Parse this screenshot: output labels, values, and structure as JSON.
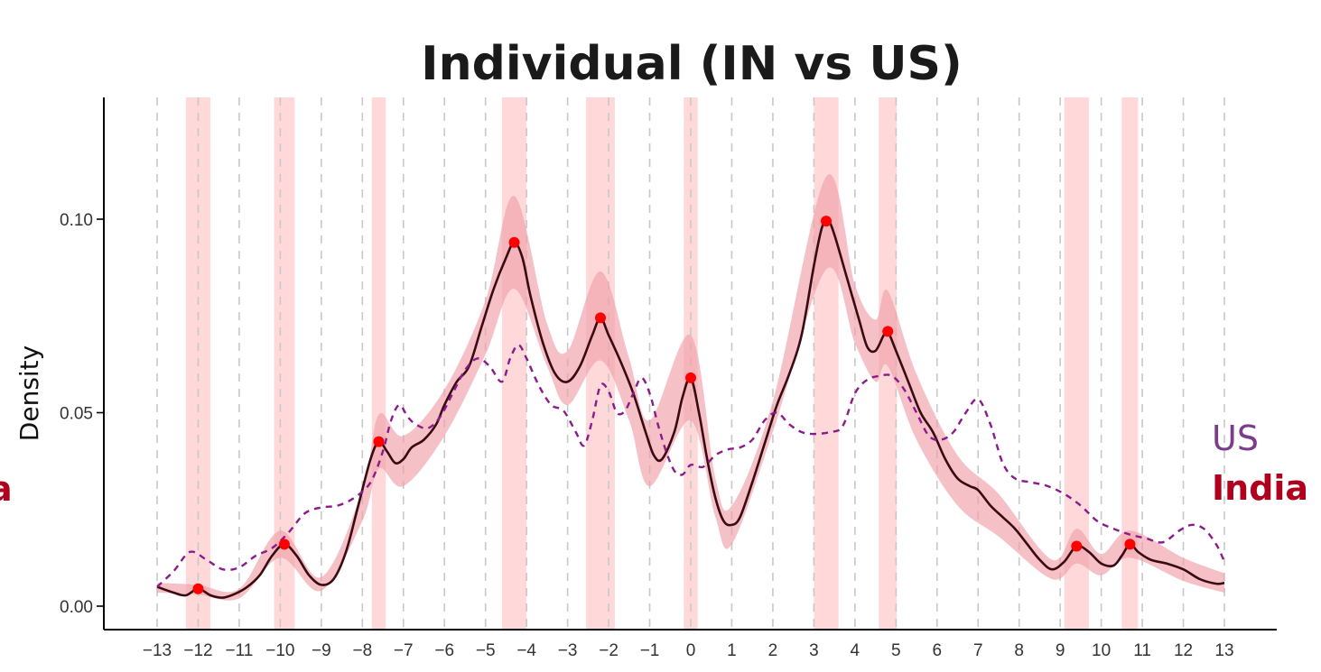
{
  "chart_data": {
    "type": "line",
    "title": "Individual (IN vs US)",
    "xlabel": "",
    "ylabel": "Density",
    "xlim": [
      -13,
      13
    ],
    "ylim": [
      0,
      0.12
    ],
    "x_ticks": [
      -13,
      -12,
      -11,
      -10,
      -9,
      -8,
      -7,
      -6,
      -5,
      -4,
      -3,
      -2,
      -1,
      0,
      1,
      2,
      3,
      4,
      5,
      6,
      7,
      8,
      9,
      10,
      11,
      12,
      13
    ],
    "y_ticks": [
      0.0,
      0.05,
      0.1
    ],
    "y_tick_labels": [
      "0.00",
      "0.05",
      "0.10"
    ],
    "grid": "vertical dashed at integer x",
    "legend": [
      {
        "label": "US",
        "color": "#8b1a8b",
        "style": "dashed"
      },
      {
        "label": "India",
        "color": "#b0001e",
        "style": "solid"
      }
    ],
    "legend_cut_label": "a",
    "series": [
      {
        "name": "India",
        "color": "#3a0a12",
        "style": "solid",
        "points": [
          [
            -13,
            0.005
          ],
          [
            -12.6,
            0.0035
          ],
          [
            -12.3,
            0.0028
          ],
          [
            -12,
            0.0045
          ],
          [
            -11.7,
            0.0028
          ],
          [
            -11.4,
            0.0022
          ],
          [
            -11.1,
            0.0032
          ],
          [
            -10.8,
            0.005
          ],
          [
            -10.5,
            0.008
          ],
          [
            -10.2,
            0.013
          ],
          [
            -9.9,
            0.016
          ],
          [
            -9.6,
            0.013
          ],
          [
            -9.3,
            0.008
          ],
          [
            -9,
            0.0055
          ],
          [
            -8.7,
            0.007
          ],
          [
            -8.4,
            0.014
          ],
          [
            -8.1,
            0.026
          ],
          [
            -7.8,
            0.038
          ],
          [
            -7.6,
            0.0425
          ],
          [
            -7.4,
            0.04
          ],
          [
            -7.2,
            0.037
          ],
          [
            -7,
            0.038
          ],
          [
            -6.8,
            0.041
          ],
          [
            -6.5,
            0.043
          ],
          [
            -6.2,
            0.047
          ],
          [
            -6,
            0.052
          ],
          [
            -5.7,
            0.058
          ],
          [
            -5.4,
            0.062
          ],
          [
            -5.1,
            0.072
          ],
          [
            -4.8,
            0.082
          ],
          [
            -4.5,
            0.09
          ],
          [
            -4.3,
            0.094
          ],
          [
            -4.1,
            0.09
          ],
          [
            -3.9,
            0.08
          ],
          [
            -3.6,
            0.068
          ],
          [
            -3.3,
            0.06
          ],
          [
            -3,
            0.058
          ],
          [
            -2.7,
            0.062
          ],
          [
            -2.4,
            0.07
          ],
          [
            -2.2,
            0.0745
          ],
          [
            -2,
            0.07
          ],
          [
            -1.7,
            0.063
          ],
          [
            -1.4,
            0.055
          ],
          [
            -1.1,
            0.045
          ],
          [
            -0.9,
            0.039
          ],
          [
            -0.7,
            0.038
          ],
          [
            -0.4,
            0.045
          ],
          [
            -0.2,
            0.054
          ],
          [
            0,
            0.059
          ],
          [
            0.2,
            0.05
          ],
          [
            0.4,
            0.038
          ],
          [
            0.6,
            0.028
          ],
          [
            0.8,
            0.022
          ],
          [
            1,
            0.021
          ],
          [
            1.2,
            0.023
          ],
          [
            1.5,
            0.032
          ],
          [
            1.8,
            0.042
          ],
          [
            2.1,
            0.052
          ],
          [
            2.4,
            0.06
          ],
          [
            2.7,
            0.07
          ],
          [
            3,
            0.088
          ],
          [
            3.2,
            0.098
          ],
          [
            3.35,
            0.0995
          ],
          [
            3.5,
            0.096
          ],
          [
            3.8,
            0.085
          ],
          [
            4.1,
            0.074
          ],
          [
            4.3,
            0.067
          ],
          [
            4.5,
            0.066
          ],
          [
            4.7,
            0.07
          ],
          [
            4.8,
            0.071
          ],
          [
            5,
            0.066
          ],
          [
            5.3,
            0.058
          ],
          [
            5.6,
            0.05
          ],
          [
            5.9,
            0.045
          ],
          [
            6.2,
            0.038
          ],
          [
            6.5,
            0.033
          ],
          [
            6.8,
            0.031
          ],
          [
            7,
            0.03
          ],
          [
            7.3,
            0.026
          ],
          [
            7.6,
            0.023
          ],
          [
            7.9,
            0.02
          ],
          [
            8.2,
            0.016
          ],
          [
            8.5,
            0.012
          ],
          [
            8.8,
            0.0095
          ],
          [
            9.1,
            0.0115
          ],
          [
            9.4,
            0.0155
          ],
          [
            9.7,
            0.014
          ],
          [
            10,
            0.011
          ],
          [
            10.3,
            0.0105
          ],
          [
            10.5,
            0.013
          ],
          [
            10.7,
            0.016
          ],
          [
            10.9,
            0.014
          ],
          [
            11.2,
            0.012
          ],
          [
            11.6,
            0.011
          ],
          [
            12,
            0.0095
          ],
          [
            12.4,
            0.007
          ],
          [
            12.8,
            0.0058
          ],
          [
            13,
            0.006
          ]
        ]
      },
      {
        "name": "US",
        "color": "#8b1a8b",
        "style": "dashed",
        "points": [
          [
            -13,
            0.005
          ],
          [
            -12.6,
            0.009
          ],
          [
            -12.2,
            0.014
          ],
          [
            -11.8,
            0.012
          ],
          [
            -11.4,
            0.0095
          ],
          [
            -11,
            0.01
          ],
          [
            -10.6,
            0.013
          ],
          [
            -10.2,
            0.015
          ],
          [
            -9.8,
            0.019
          ],
          [
            -9.4,
            0.024
          ],
          [
            -9,
            0.0255
          ],
          [
            -8.6,
            0.026
          ],
          [
            -8.2,
            0.028
          ],
          [
            -7.8,
            0.032
          ],
          [
            -7.5,
            0.04
          ],
          [
            -7.3,
            0.048
          ],
          [
            -7.1,
            0.052
          ],
          [
            -6.9,
            0.049
          ],
          [
            -6.7,
            0.047
          ],
          [
            -6.4,
            0.046
          ],
          [
            -6.1,
            0.049
          ],
          [
            -5.8,
            0.055
          ],
          [
            -5.5,
            0.061
          ],
          [
            -5.2,
            0.064
          ],
          [
            -4.9,
            0.062
          ],
          [
            -4.6,
            0.058
          ],
          [
            -4.4,
            0.064
          ],
          [
            -4.2,
            0.0675
          ],
          [
            -4,
            0.064
          ],
          [
            -3.7,
            0.057
          ],
          [
            -3.4,
            0.052
          ],
          [
            -3.1,
            0.0505
          ],
          [
            -2.8,
            0.045
          ],
          [
            -2.6,
            0.0415
          ],
          [
            -2.4,
            0.048
          ],
          [
            -2.2,
            0.057
          ],
          [
            -2,
            0.0555
          ],
          [
            -1.8,
            0.05
          ],
          [
            -1.6,
            0.0505
          ],
          [
            -1.4,
            0.055
          ],
          [
            -1.2,
            0.059
          ],
          [
            -1,
            0.055
          ],
          [
            -0.8,
            0.047
          ],
          [
            -0.6,
            0.04
          ],
          [
            -0.4,
            0.035
          ],
          [
            -0.2,
            0.034
          ],
          [
            0,
            0.0365
          ],
          [
            0.3,
            0.036
          ],
          [
            0.6,
            0.039
          ],
          [
            0.9,
            0.0405
          ],
          [
            1.2,
            0.041
          ],
          [
            1.5,
            0.043
          ],
          [
            1.8,
            0.048
          ],
          [
            2.1,
            0.05
          ],
          [
            2.4,
            0.047
          ],
          [
            2.7,
            0.045
          ],
          [
            3,
            0.0445
          ],
          [
            3.4,
            0.045
          ],
          [
            3.7,
            0.0465
          ],
          [
            4,
            0.055
          ],
          [
            4.3,
            0.0585
          ],
          [
            4.6,
            0.0595
          ],
          [
            4.9,
            0.0595
          ],
          [
            5.2,
            0.056
          ],
          [
            5.5,
            0.05
          ],
          [
            5.8,
            0.044
          ],
          [
            6.1,
            0.043
          ],
          [
            6.4,
            0.045
          ],
          [
            6.7,
            0.05
          ],
          [
            7,
            0.0535
          ],
          [
            7.3,
            0.047
          ],
          [
            7.6,
            0.037
          ],
          [
            7.9,
            0.033
          ],
          [
            8.3,
            0.032
          ],
          [
            8.7,
            0.031
          ],
          [
            9.1,
            0.029
          ],
          [
            9.5,
            0.026
          ],
          [
            9.9,
            0.022
          ],
          [
            10.3,
            0.02
          ],
          [
            10.7,
            0.0185
          ],
          [
            11.1,
            0.0175
          ],
          [
            11.5,
            0.0165
          ],
          [
            11.9,
            0.0195
          ],
          [
            12.2,
            0.021
          ],
          [
            12.5,
            0.02
          ],
          [
            12.8,
            0.016
          ],
          [
            13,
            0.0115
          ]
        ]
      }
    ],
    "confidence_band": {
      "series": "India",
      "color": "#f0a0a8",
      "upper": [
        [
          -13,
          0.006
        ],
        [
          -12,
          0.0055
        ],
        [
          -11,
          0.0045
        ],
        [
          -10,
          0.0195
        ],
        [
          -9,
          0.0075
        ],
        [
          -8,
          0.03
        ],
        [
          -7.6,
          0.0495
        ],
        [
          -7,
          0.044
        ],
        [
          -6,
          0.056
        ],
        [
          -5,
          0.079
        ],
        [
          -4.3,
          0.106
        ],
        [
          -3.5,
          0.073
        ],
        [
          -3,
          0.066
        ],
        [
          -2.2,
          0.0865
        ],
        [
          -1.5,
          0.064
        ],
        [
          -1,
          0.048
        ],
        [
          0,
          0.07
        ],
        [
          0.6,
          0.033
        ],
        [
          1,
          0.026
        ],
        [
          2,
          0.053
        ],
        [
          3.3,
          0.111
        ],
        [
          4,
          0.083
        ],
        [
          4.5,
          0.074
        ],
        [
          4.8,
          0.0815
        ],
        [
          5.5,
          0.06
        ],
        [
          6.5,
          0.039
        ],
        [
          7.5,
          0.029
        ],
        [
          8.8,
          0.012
        ],
        [
          9.4,
          0.02
        ],
        [
          10,
          0.0135
        ],
        [
          10.7,
          0.0195
        ],
        [
          12,
          0.0125
        ],
        [
          13,
          0.0085
        ]
      ],
      "lower": [
        [
          -13,
          0.0035
        ],
        [
          -12,
          0.003
        ],
        [
          -11,
          0.002
        ],
        [
          -10,
          0.0125
        ],
        [
          -9,
          0.004
        ],
        [
          -8,
          0.022
        ],
        [
          -7.6,
          0.0355
        ],
        [
          -7,
          0.031
        ],
        [
          -6,
          0.044
        ],
        [
          -5,
          0.065
        ],
        [
          -4.3,
          0.082
        ],
        [
          -3.5,
          0.062
        ],
        [
          -3,
          0.052
        ],
        [
          -2.2,
          0.0635
        ],
        [
          -1.5,
          0.048
        ],
        [
          -1,
          0.031
        ],
        [
          0,
          0.048
        ],
        [
          0.6,
          0.023
        ],
        [
          1,
          0.016
        ],
        [
          2,
          0.045
        ],
        [
          3.3,
          0.087
        ],
        [
          4,
          0.068
        ],
        [
          4.5,
          0.058
        ],
        [
          4.8,
          0.062
        ],
        [
          5.5,
          0.043
        ],
        [
          6.5,
          0.026
        ],
        [
          7.5,
          0.018
        ],
        [
          8.8,
          0.007
        ],
        [
          9.4,
          0.011
        ],
        [
          10,
          0.008
        ],
        [
          10.7,
          0.0125
        ],
        [
          12,
          0.0065
        ],
        [
          13,
          0.0035
        ]
      ]
    },
    "peaks": [
      [
        -12,
        0.0045
      ],
      [
        -9.9,
        0.016
      ],
      [
        -7.6,
        0.0425
      ],
      [
        -4.3,
        0.094
      ],
      [
        -2.2,
        0.0745
      ],
      [
        0,
        0.059
      ],
      [
        3.3,
        0.0995
      ],
      [
        4.8,
        0.071
      ],
      [
        9.4,
        0.0155
      ],
      [
        10.7,
        0.016
      ]
    ],
    "peak_band_half_width": [
      0.3,
      0.25,
      0.17,
      0.3,
      0.35,
      0.17,
      0.3,
      0.22,
      0.3,
      0.2
    ]
  },
  "colors": {
    "india": "#b0001e",
    "us": "#7a3d8c",
    "peak_dot": "#ff0000",
    "peak_band": "#ffcccc",
    "grid": "#c8c8c8"
  }
}
